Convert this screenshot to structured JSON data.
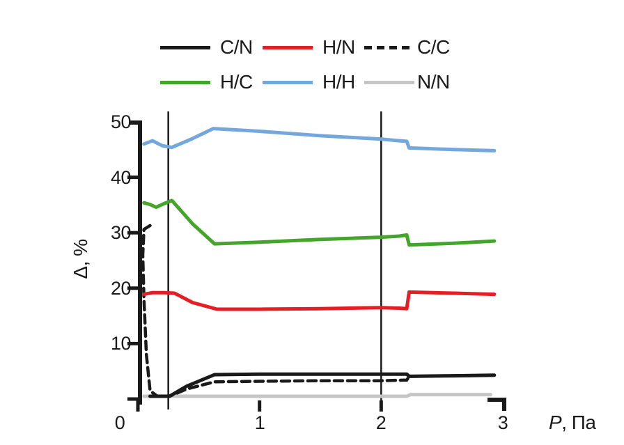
{
  "chart_data": {
    "type": "line",
    "title": "",
    "xlabel": "P, Па",
    "xlabel_var": "P",
    "xlabel_unit": ", Па",
    "ylabel": "Δ, %",
    "xlim": [
      0,
      3
    ],
    "ylim": [
      0,
      50
    ],
    "xtick_labels": [
      "0",
      "1",
      "2",
      "3"
    ],
    "xtick_values": [
      0,
      1,
      2,
      3
    ],
    "ytick_labels": [
      "50",
      "40",
      "30",
      "20",
      "10"
    ],
    "ytick_values": [
      50,
      40,
      30,
      20,
      10
    ],
    "ytick_values_marks": [
      50,
      40,
      30,
      20,
      10,
      0
    ],
    "grid": false,
    "legend_position": "top-center",
    "marker_vlines_x": [
      0.25,
      2.0
    ],
    "axis_color": "#1a1a1a",
    "draw_order": [
      5,
      0,
      2,
      1,
      3,
      4
    ],
    "series": [
      {
        "name": "C/N",
        "color": "#1a1a1a",
        "dash": false,
        "width": 5,
        "points": [
          [
            0.1,
            0.5
          ],
          [
            0.26,
            0.5
          ],
          [
            0.4,
            2.3
          ],
          [
            0.63,
            4.4
          ],
          [
            1.0,
            4.5
          ],
          [
            1.5,
            4.5
          ],
          [
            2.0,
            4.5
          ],
          [
            2.21,
            4.5
          ],
          [
            2.23,
            4.1
          ],
          [
            2.6,
            4.2
          ],
          [
            2.93,
            4.3
          ]
        ]
      },
      {
        "name": "H/N",
        "color": "#e31e24",
        "dash": false,
        "width": 5,
        "points": [
          [
            0.05,
            18.9
          ],
          [
            0.12,
            19.2
          ],
          [
            0.22,
            19.2
          ],
          [
            0.3,
            19.1
          ],
          [
            0.45,
            17.4
          ],
          [
            0.65,
            16.2
          ],
          [
            1.0,
            16.2
          ],
          [
            1.5,
            16.3
          ],
          [
            2.0,
            16.5
          ],
          [
            2.15,
            16.4
          ],
          [
            2.21,
            16.3
          ],
          [
            2.23,
            19.3
          ],
          [
            2.6,
            19.1
          ],
          [
            2.93,
            18.9
          ]
        ]
      },
      {
        "name": "C/C",
        "color": "#1a1a1a",
        "dash": true,
        "width": 4.5,
        "points": [
          [
            0.1,
            31.3
          ],
          [
            0.05,
            30.6
          ],
          [
            0.04,
            26.0
          ],
          [
            0.05,
            18.0
          ],
          [
            0.07,
            8.0
          ],
          [
            0.1,
            1.5
          ],
          [
            0.16,
            0.5
          ],
          [
            0.26,
            0.5
          ],
          [
            0.4,
            1.8
          ],
          [
            0.63,
            3.1
          ],
          [
            1.0,
            3.2
          ],
          [
            1.5,
            3.3
          ],
          [
            2.0,
            3.3
          ],
          [
            2.18,
            3.4
          ],
          [
            2.21,
            3.4
          ],
          [
            2.23,
            4.1
          ],
          [
            2.6,
            4.2
          ],
          [
            2.93,
            4.3
          ]
        ]
      },
      {
        "name": "H/C",
        "color": "#43a62a",
        "dash": false,
        "width": 5,
        "points": [
          [
            0.05,
            35.4
          ],
          [
            0.1,
            35.1
          ],
          [
            0.15,
            34.6
          ],
          [
            0.22,
            35.3
          ],
          [
            0.28,
            35.8
          ],
          [
            0.45,
            31.6
          ],
          [
            0.63,
            28.0
          ],
          [
            1.0,
            28.3
          ],
          [
            1.5,
            28.8
          ],
          [
            2.0,
            29.2
          ],
          [
            2.15,
            29.4
          ],
          [
            2.21,
            29.6
          ],
          [
            2.23,
            27.8
          ],
          [
            2.6,
            28.1
          ],
          [
            2.93,
            28.5
          ]
        ]
      },
      {
        "name": "H/H",
        "color": "#74a8dc",
        "dash": false,
        "width": 5,
        "points": [
          [
            0.05,
            46.0
          ],
          [
            0.12,
            46.6
          ],
          [
            0.2,
            45.7
          ],
          [
            0.28,
            45.4
          ],
          [
            0.45,
            47.0
          ],
          [
            0.62,
            48.8
          ],
          [
            1.0,
            48.3
          ],
          [
            1.5,
            47.5
          ],
          [
            2.0,
            46.9
          ],
          [
            2.15,
            46.6
          ],
          [
            2.21,
            46.5
          ],
          [
            2.23,
            45.3
          ],
          [
            2.6,
            45.0
          ],
          [
            2.93,
            44.8
          ]
        ]
      },
      {
        "name": "N/N",
        "color": "#c6c6c6",
        "dash": false,
        "width": 5,
        "points": [
          [
            0.05,
            0.5
          ],
          [
            2.21,
            0.5
          ],
          [
            2.24,
            0.8
          ],
          [
            2.9,
            0.8
          ]
        ]
      }
    ]
  }
}
